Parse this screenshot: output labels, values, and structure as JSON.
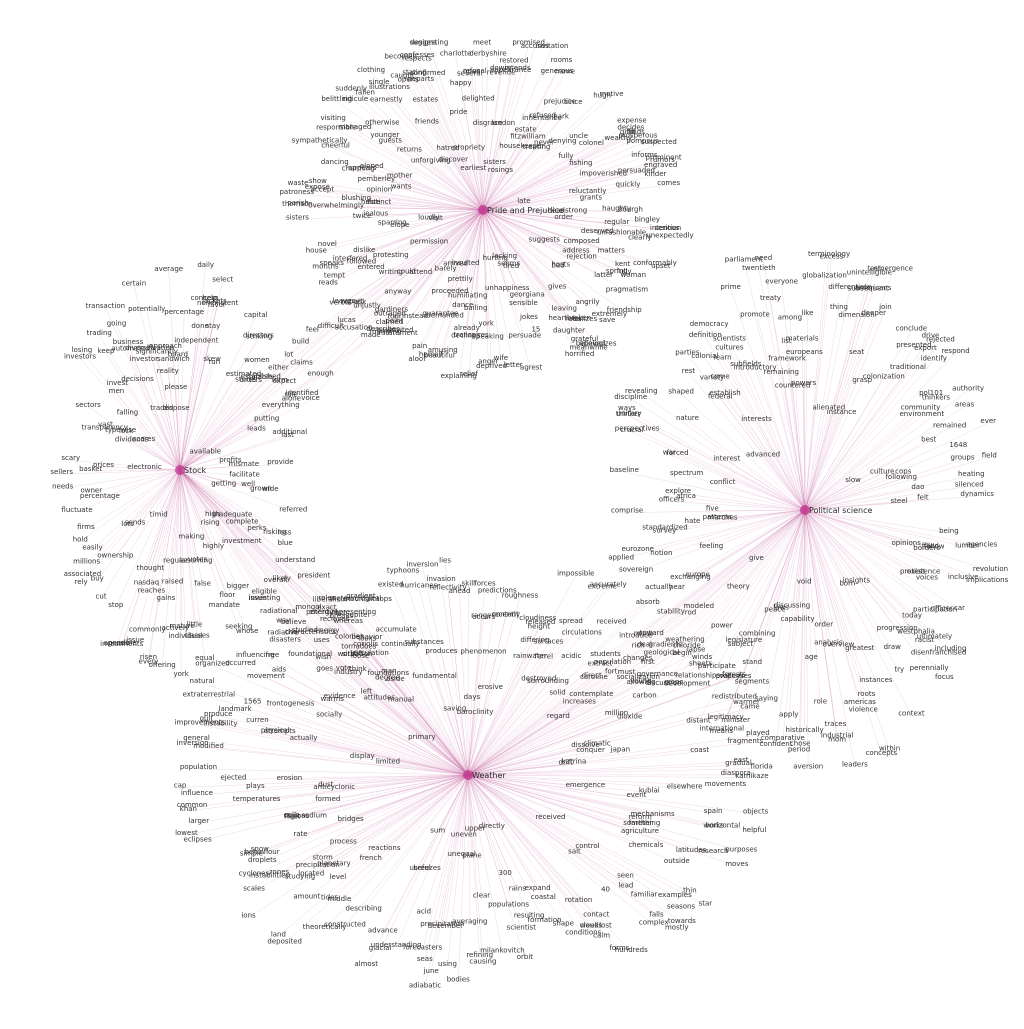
{
  "colors": {
    "edge": "#c86aa6",
    "hub": "#c2338f",
    "text": "#333333",
    "background": "#ffffff"
  },
  "hubs": [
    {
      "id": "pride",
      "label": "Pride and Prejudice"
    },
    {
      "id": "stock",
      "label": "Stock"
    },
    {
      "id": "science",
      "label": "Political science"
    },
    {
      "id": "weather",
      "label": "Weather"
    }
  ],
  "clusters": {
    "pride": [
      "order",
      "intention",
      "bingley",
      "conformably",
      "unfashionable",
      "composed",
      "matters",
      "clearly",
      "fully",
      "woman",
      "rejection",
      "upset",
      "address",
      "kent",
      "spring",
      "suggests",
      "pragmatism",
      "friendship",
      "latter",
      "bad",
      "angrily",
      "extremely",
      "hosts",
      "refer",
      "grateful",
      "heartbroken",
      "save",
      "gives",
      "meanwhile",
      "realizes",
      "believed",
      "apologizes",
      "daughter",
      "horrified",
      "leaving",
      "lacking",
      "georgiana",
      "tired",
      "jokes",
      "persuade",
      "seems",
      "15",
      "letter",
      "sensible",
      "agrest",
      "unhappiness",
      "anger",
      "hurting",
      "speaking",
      "wife",
      "bailing",
      "deprived",
      "relief",
      "humiliating",
      "york",
      "explaining",
      "declines",
      "already",
      "transpires",
      "amusing",
      "prettily",
      "beautiful",
      "dance",
      "demanded",
      "guarantee",
      "pain",
      "proceeded",
      "insulted",
      "aloof",
      "herself",
      "statement",
      "arrived",
      "claimed",
      "barely",
      "invited",
      "instead",
      "outraged",
      "tour",
      "marrying",
      "true",
      "describes",
      "gardiners",
      "attend",
      "unjustly",
      "could",
      "lucas",
      "accusation",
      "verbal",
      "followed",
      "entered",
      "leaves",
      "reads",
      "permission",
      "protesting",
      "speaks",
      "house",
      "interfered",
      "tempt",
      "months",
      "novel",
      "visit",
      "dislike",
      "sisters",
      "loudly",
      "jealous",
      "sparring",
      "elope",
      "twice",
      "blushing",
      "parish",
      "expose",
      "thomson",
      "patroness",
      "waste",
      "opinion",
      "overwhelmingly",
      "distinct",
      "haste",
      "accept",
      "mother",
      "show",
      "pemberley",
      "appears",
      "cheerful",
      "wants",
      "charming",
      "dancing",
      "eloped",
      "responsible",
      "sympathetically",
      "younger",
      "visiting",
      "managed",
      "guests",
      "returns",
      "otherwise",
      "unforgiving",
      "earnestly",
      "belittling",
      "suddenly",
      "ridicule",
      "fallen",
      "friends",
      "single",
      "clothing",
      "hatred",
      "illustrations",
      "departs",
      "becomes",
      "stating",
      "opens",
      "suggesting",
      "caught",
      "discover",
      "earliest",
      "estates",
      "confesses",
      "respects",
      "confirmed",
      "propriety",
      "designs",
      "pride",
      "delighted",
      "meet",
      "charlotte",
      "disgrace",
      "happy",
      "open",
      "refusal",
      "several",
      "london",
      "dowry",
      "appearance",
      "derbyshire",
      "promised",
      "revenue",
      "restored",
      "rosings",
      "sisters",
      "estate",
      "intends",
      "accuses",
      "housekeeper",
      "generous",
      "rooms",
      "invitation",
      "name",
      "park",
      "fitzwilliam",
      "refused",
      "since",
      "prejudice",
      "inheritance",
      "treating",
      "denying",
      "never",
      "motive",
      "hugh",
      "fully",
      "expense",
      "uncle",
      "colonel",
      "prosperous",
      "decides",
      "wealthy",
      "gifts",
      "finds",
      "ill",
      "impoverished",
      "fishing",
      "prominent",
      "pompous",
      "informs",
      "rumors",
      "quickly",
      "suspected",
      "late",
      "persuaded",
      "engraved",
      "grants",
      "comes",
      "kinder",
      "haughty",
      "reluctantly",
      "serious",
      "headstrong",
      "unexpectedly",
      "regular",
      "bourgh",
      "deserved"
    ],
    "stock": [
      "grown",
      "getting",
      "loss",
      "referred",
      "perks",
      "complete",
      "blue",
      "risking",
      "likely",
      "inadequate",
      "investment",
      "investing",
      "overall",
      "high",
      "rising",
      "bigger",
      "seeking",
      "highly",
      "whose",
      "floor",
      "mandate",
      "false",
      "votes",
      "making",
      "equal",
      "little",
      "classes",
      "assuming",
      "mature",
      "individual",
      "raised",
      "regular",
      "gains",
      "york",
      "actively",
      "risen",
      "every",
      "offering",
      "issue",
      "reaches",
      "commonly",
      "thought",
      "nasdaq",
      "investments",
      "stop",
      "possible",
      "agenda",
      "timid",
      "cut",
      "buy",
      "ownership",
      "millions",
      "rely",
      "sends",
      "associated",
      "lots",
      "hold",
      "easily",
      "percentage",
      "fluctuate",
      "firms",
      "owner",
      "needs",
      "electronic",
      "scary",
      "basket",
      "prices",
      "sellers",
      "transparency",
      "vast",
      "lock",
      "scares",
      "sectors",
      "dividends",
      "investors",
      "typewise",
      "losing",
      "falling",
      "invest",
      "keep",
      "trading",
      "men",
      "decisions",
      "business",
      "transaction",
      "automated",
      "going",
      "traded",
      "investor",
      "certain",
      "significantly",
      "reality",
      "potentially",
      "diversification",
      "average",
      "please",
      "sandwich",
      "approach",
      "dispose",
      "percentage",
      "board",
      "concern",
      "done",
      "daily",
      "nonexistent",
      "independent",
      "stay",
      "favor",
      "help",
      "jackets",
      "select",
      "skew",
      "capital",
      "run",
      "directors",
      "estimated",
      "women",
      "striking",
      "viable",
      "stores",
      "established",
      "orders",
      "expect",
      "alone",
      "everything",
      "putting",
      "leads",
      "last",
      "available",
      "mismate",
      "provide",
      "additional",
      "facilitate",
      "profits",
      "well",
      "wide"
    ],
    "science": [
      "lumber",
      "opinions",
      "revolution",
      "implications",
      "filled",
      "protest",
      "borders",
      "inclusive",
      "voices",
      "officer",
      "existence",
      "car",
      "ultimately",
      "participation",
      "racist",
      "focus",
      "including",
      "today",
      "progression",
      "disenfranchised",
      "westphalia",
      "perennially",
      "insights",
      "try",
      "context",
      "instances",
      "draw",
      "within",
      "born",
      "americas",
      "roots",
      "greatest",
      "concepts",
      "leaders",
      "violence",
      "industrial",
      "traces",
      "mom",
      "overview",
      "order",
      "analysis",
      "aversion",
      "period",
      "historically",
      "role",
      "comparative",
      "age",
      "void",
      "capability",
      "chose",
      "apply",
      "confident",
      "discussing",
      "laws",
      "saying",
      "segments",
      "peace",
      "means",
      "stand",
      "international",
      "combining",
      "legislature",
      "minister",
      "legitimacy",
      "power",
      "subject",
      "participate",
      "distant",
      "crops",
      "governance",
      "relationships",
      "give",
      "begin",
      "theory",
      "modeled",
      "discussion",
      "hear",
      "toward",
      "first",
      "stability",
      "introduce",
      "feeling",
      "europe",
      "exchanging",
      "sovereign",
      "applied",
      "notion",
      "hate",
      "patterns",
      "standardized",
      "eurozone",
      "survey",
      "five",
      "officers",
      "marches",
      "explore",
      "baseline",
      "comprise",
      "africa",
      "spectrum",
      "forced",
      "unitary",
      "crucial",
      "thinker",
      "conflict",
      "war",
      "perspectives",
      "discipline",
      "ways",
      "nature",
      "interest",
      "rest",
      "revealing",
      "shaped",
      "variety",
      "federal",
      "advanced",
      "come",
      "colonial",
      "democracy",
      "cultures",
      "parties",
      "scientists",
      "establish",
      "learn",
      "definition",
      "interests",
      "subfields",
      "introductory",
      "promote",
      "parliament",
      "twentieth",
      "prime",
      "need",
      "list",
      "treaty",
      "remaining",
      "among",
      "powers",
      "framework",
      "everyone",
      "europeans",
      "countered",
      "materials",
      "like",
      "excess",
      "terminology",
      "differentiate",
      "thing",
      "globalization",
      "alienated",
      "dimension",
      "subsequent",
      "instance",
      "join",
      "test",
      "americans",
      "unintelligible",
      "seat",
      "emergence",
      "grasp",
      "deeper",
      "presented",
      "conclude",
      "rejected",
      "colonization",
      "export",
      "respond",
      "identify",
      "drive",
      "thinkers",
      "traditional",
      "community",
      "environment",
      "areas",
      "best",
      "remained",
      "pol101",
      "culture",
      "authority",
      "cops",
      "1648",
      "slow",
      "field",
      "ever",
      "groups",
      "heating",
      "felt",
      "following",
      "dao",
      "silenced",
      "steel",
      "agencies",
      "being",
      "dynamics",
      "follow"
    ],
    "weather": [
      "objects",
      "mechanisms",
      "emergence",
      "purposes",
      "reform",
      "farther",
      "research",
      "works",
      "horizontal",
      "helpful",
      "chemicals",
      "outside",
      "agriculture",
      "moves",
      "received",
      "something",
      "thin",
      "latitudes",
      "examples",
      "towards",
      "seen",
      "control",
      "mostly",
      "star",
      "seasons",
      "40",
      "salt",
      "complex",
      "familiar",
      "lead",
      "falls",
      "rotation",
      "conditions",
      "hundreds",
      "lost",
      "shape",
      "coastal",
      "contact",
      "cloud",
      "forms",
      "calm",
      "weeks",
      "expand",
      "populations",
      "rains",
      "scientist",
      "formation",
      "directly",
      "resulting",
      "orbit",
      "refining",
      "causing",
      "300",
      "uneven",
      "upper",
      "milankovitch",
      "averaging",
      "plane",
      "clear",
      "bodies",
      "seas",
      "adiabatic",
      "december",
      "precipitation",
      "using",
      "unequal",
      "forecasters",
      "june",
      "acid",
      "advance",
      "breezes",
      "sum",
      "understanding",
      "useful",
      "glacial",
      "theoretically",
      "almost",
      "describing",
      "constructed",
      "tides",
      "reactions",
      "deposited",
      "level",
      "french",
      "amount",
      "located",
      "planetary",
      "middle",
      "land",
      "ions",
      "process",
      "scales",
      "cyclones",
      "studying",
      "storm",
      "instabilities",
      "behaviour",
      "precipitation",
      "zones",
      "bridges",
      "droplets",
      "sodium",
      "rate",
      "eclipses",
      "snow",
      "simple",
      "formed",
      "fleet",
      "regions",
      "anticyclonic",
      "cells",
      "common",
      "larger",
      "influence",
      "lowest",
      "dust",
      "temperatures",
      "khan",
      "plays",
      "cap",
      "erosion",
      "inversion",
      "limited",
      "ejected",
      "display",
      "modified",
      "general",
      "population",
      "curren",
      "improvements",
      "actually",
      "gulf",
      "physical",
      "instability",
      "frontogenesis",
      "landmark",
      "produce",
      "attempts",
      "socially",
      "extraterrestrial",
      "movement",
      "natural",
      "1565",
      "aids",
      "free",
      "influencing",
      "organized",
      "disasters",
      "occurred",
      "evidence",
      "industry",
      "radiative",
      "warms",
      "energy",
      "primary",
      "characteristics",
      "studied",
      "mongol",
      "breaks",
      "radiational",
      "circulation",
      "meteorological",
      "exact",
      "whereas",
      "coriolis",
      "tornadoes",
      "existed",
      "jupiter",
      "gradient",
      "typhoons",
      "hurricanes",
      "accumulate",
      "continually",
      "mountaintops",
      "reflectivity",
      "substances",
      "saving",
      "invasion",
      "fundamental",
      "produces",
      "inversion",
      "range",
      "lies",
      "baroclinity",
      "days",
      "occurs",
      "ahead",
      "skill",
      "predictions",
      "phenomenon",
      "forces",
      "recently",
      "erosive",
      "roughness",
      "cloudiness",
      "content",
      "spread",
      "impossible",
      "differing",
      "height",
      "released",
      "destroyed",
      "extreme",
      "rainwater",
      "surrounding",
      "surfaces",
      "ferrel",
      "accurately",
      "circulations",
      "absorb",
      "acidic",
      "direct",
      "population",
      "weathering",
      "chloride",
      "lapse",
      "increases",
      "sheets",
      "gradients",
      "geological",
      "fort",
      "allowing",
      "million",
      "winds",
      "properties",
      "dioxide",
      "valleys",
      "development",
      "forests",
      "carbon",
      "warmer",
      "came",
      "redistributed",
      "climatic",
      "japan",
      "fragments",
      "dissolve",
      "conquer",
      "drift",
      "east",
      "played",
      "diaspora",
      "gradual",
      "movements",
      "florida",
      "katrina",
      "coast",
      "kamikaze",
      "event",
      "elsewhere",
      "kublai",
      "spain"
    ],
    "shared": [
      "enough",
      "wish",
      "rich",
      "believe",
      "point",
      "goes",
      "much",
      "worst",
      "ask",
      "issue",
      "must",
      "recieves",
      "made",
      "way",
      "caroline",
      "degree",
      "either",
      "uses",
      "changes",
      "man",
      "report",
      "vote",
      "extract",
      "think",
      "lot",
      "eligible",
      "regard",
      "representing",
      "writing",
      "behavior",
      "young",
      "understand",
      "voice",
      "situation",
      "socialization",
      "left",
      "identified",
      "foundational",
      "deal",
      "colonies",
      "anyway",
      "president",
      "contemplate",
      "looks",
      "feel",
      "attitudes",
      "students",
      "foundations",
      "build",
      "liberalism",
      "solid",
      "manual",
      "role",
      "roles",
      "rod",
      "aside",
      "form",
      "potential",
      "actually",
      "act",
      "claims",
      "energy",
      "received",
      "loose",
      "difficult",
      "100"
    ]
  }
}
